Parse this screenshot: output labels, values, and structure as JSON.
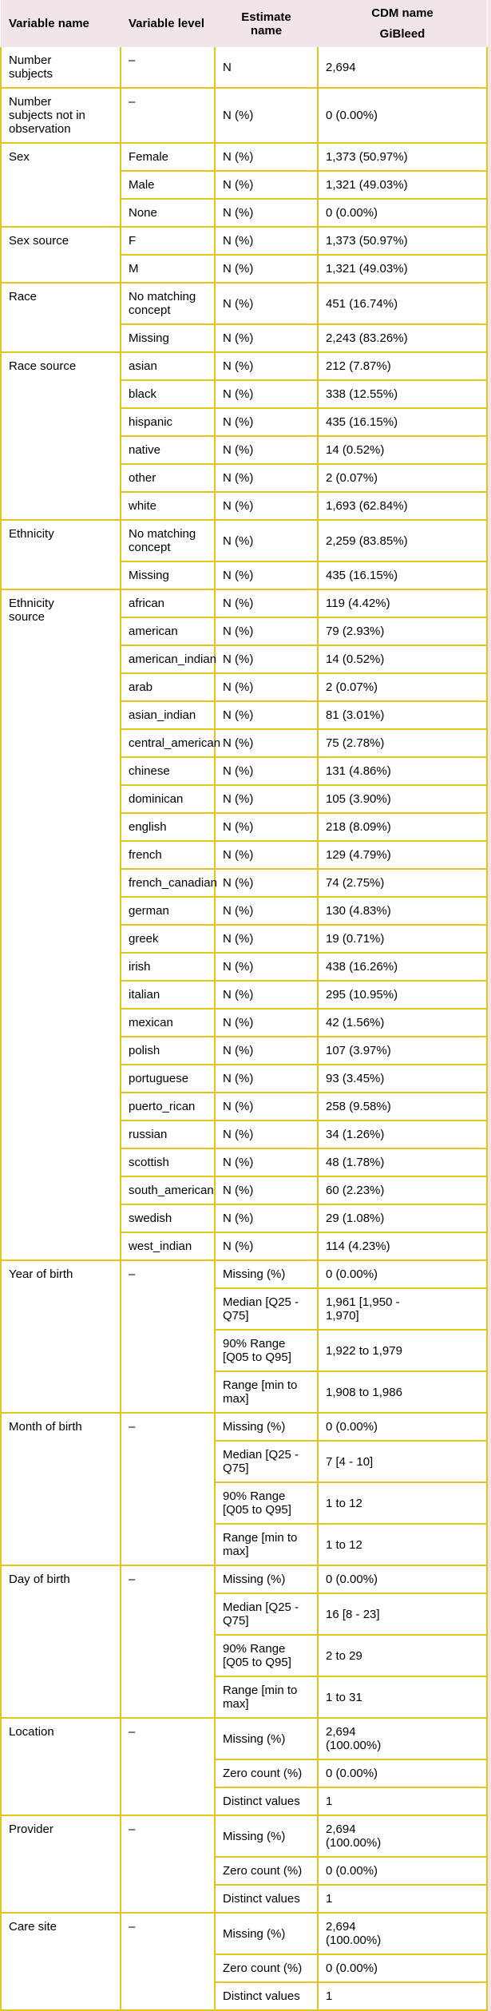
{
  "colors": {
    "border_gold": "#e3c51c",
    "header_pink": "#f2e5ea",
    "row_bg": "#ffffff",
    "text": "#000000"
  },
  "table": {
    "header": {
      "variable_name": "Variable name",
      "variable_level": "Variable level",
      "estimate_name": "Estimate\nname",
      "cdm_spanner": "CDM name",
      "cdm_label": "GiBleed"
    },
    "groups": [
      {
        "variable": "Number subjects",
        "level": "–",
        "rows": [
          {
            "estimate": "N",
            "value": "2,694"
          }
        ]
      },
      {
        "variable": "Number subjects not in observation",
        "level": "–",
        "rows": [
          {
            "estimate": "N (%)",
            "value": "0 (0.00%)"
          }
        ]
      },
      {
        "variable": "Sex",
        "rows": [
          {
            "level": "Female",
            "estimate": "N (%)",
            "value": "1,373 (50.97%)"
          },
          {
            "level": "Male",
            "estimate": "N (%)",
            "value": "1,321 (49.03%)"
          },
          {
            "level": "None",
            "estimate": "N (%)",
            "value": "0 (0.00%)"
          }
        ]
      },
      {
        "variable": "Sex source",
        "rows": [
          {
            "level": "F",
            "estimate": "N (%)",
            "value": "1,373 (50.97%)"
          },
          {
            "level": "M",
            "estimate": "N (%)",
            "value": "1,321 (49.03%)"
          }
        ]
      },
      {
        "variable": "Race",
        "rows": [
          {
            "level": "No matching concept",
            "estimate": "N (%)",
            "value": "451 (16.74%)"
          },
          {
            "level": "Missing",
            "estimate": "N (%)",
            "value": "2,243 (83.26%)"
          }
        ]
      },
      {
        "variable": "Race source",
        "rows": [
          {
            "level": "asian",
            "estimate": "N (%)",
            "value": "212 (7.87%)"
          },
          {
            "level": "black",
            "estimate": "N (%)",
            "value": "338 (12.55%)"
          },
          {
            "level": "hispanic",
            "estimate": "N (%)",
            "value": "435 (16.15%)"
          },
          {
            "level": "native",
            "estimate": "N (%)",
            "value": "14 (0.52%)"
          },
          {
            "level": "other",
            "estimate": "N (%)",
            "value": "2 (0.07%)"
          },
          {
            "level": "white",
            "estimate": "N (%)",
            "value": "1,693 (62.84%)"
          }
        ]
      },
      {
        "variable": "Ethnicity",
        "rows": [
          {
            "level": "No matching concept",
            "estimate": "N (%)",
            "value": "2,259 (83.85%)"
          },
          {
            "level": "Missing",
            "estimate": "N (%)",
            "value": "435 (16.15%)"
          }
        ]
      },
      {
        "variable": "Ethnicity source",
        "rows": [
          {
            "level": "african",
            "estimate": "N (%)",
            "value": "119 (4.42%)"
          },
          {
            "level": "american",
            "estimate": "N (%)",
            "value": "79 (2.93%)"
          },
          {
            "level": "american_indian",
            "estimate": "N (%)",
            "value": "14 (0.52%)"
          },
          {
            "level": "arab",
            "estimate": "N (%)",
            "value": "2 (0.07%)"
          },
          {
            "level": "asian_indian",
            "estimate": "N (%)",
            "value": "81 (3.01%)"
          },
          {
            "level": "central_american",
            "estimate": "N (%)",
            "value": "75 (2.78%)"
          },
          {
            "level": "chinese",
            "estimate": "N (%)",
            "value": "131 (4.86%)"
          },
          {
            "level": "dominican",
            "estimate": "N (%)",
            "value": "105 (3.90%)"
          },
          {
            "level": "english",
            "estimate": "N (%)",
            "value": "218 (8.09%)"
          },
          {
            "level": "french",
            "estimate": "N (%)",
            "value": "129 (4.79%)"
          },
          {
            "level": "french_canadian",
            "estimate": "N (%)",
            "value": "74 (2.75%)"
          },
          {
            "level": "german",
            "estimate": "N (%)",
            "value": "130 (4.83%)"
          },
          {
            "level": "greek",
            "estimate": "N (%)",
            "value": "19 (0.71%)"
          },
          {
            "level": "irish",
            "estimate": "N (%)",
            "value": "438 (16.26%)"
          },
          {
            "level": "italian",
            "estimate": "N (%)",
            "value": "295 (10.95%)"
          },
          {
            "level": "mexican",
            "estimate": "N (%)",
            "value": "42 (1.56%)"
          },
          {
            "level": "polish",
            "estimate": "N (%)",
            "value": "107 (3.97%)"
          },
          {
            "level": "portuguese",
            "estimate": "N (%)",
            "value": "93 (3.45%)"
          },
          {
            "level": "puerto_rican",
            "estimate": "N (%)",
            "value": "258 (9.58%)"
          },
          {
            "level": "russian",
            "estimate": "N (%)",
            "value": "34 (1.26%)"
          },
          {
            "level": "scottish",
            "estimate": "N (%)",
            "value": "48 (1.78%)"
          },
          {
            "level": "south_american",
            "estimate": "N (%)",
            "value": "60 (2.23%)"
          },
          {
            "level": "swedish",
            "estimate": "N (%)",
            "value": "29 (1.08%)"
          },
          {
            "level": "west_indian",
            "estimate": "N (%)",
            "value": "114 (4.23%)"
          }
        ]
      },
      {
        "variable": "Year of birth",
        "level": "–",
        "rows": [
          {
            "estimate": "Missing (%)",
            "value": "0 (0.00%)"
          },
          {
            "estimate": "Median [Q25 - Q75]",
            "value": "1,961 [1,950 - 1,970]"
          },
          {
            "estimate": "90% Range [Q05 to Q95]",
            "value": "1,922 to 1,979"
          },
          {
            "estimate": "Range [min to max]",
            "value": "1,908 to 1,986"
          }
        ]
      },
      {
        "variable": "Month of birth",
        "level": "–",
        "rows": [
          {
            "estimate": "Missing (%)",
            "value": "0 (0.00%)"
          },
          {
            "estimate": "Median [Q25 - Q75]",
            "value": "7 [4 - 10]"
          },
          {
            "estimate": "90% Range [Q05 to Q95]",
            "value": "1 to 12"
          },
          {
            "estimate": "Range [min to max]",
            "value": "1 to 12"
          }
        ]
      },
      {
        "variable": "Day of birth",
        "level": "–",
        "rows": [
          {
            "estimate": "Missing (%)",
            "value": "0 (0.00%)"
          },
          {
            "estimate": "Median [Q25 - Q75]",
            "value": "16 [8 - 23]"
          },
          {
            "estimate": "90% Range [Q05 to Q95]",
            "value": "2 to 29"
          },
          {
            "estimate": "Range [min to max]",
            "value": "1 to 31"
          }
        ]
      },
      {
        "variable": "Location",
        "level": "–",
        "rows": [
          {
            "estimate": "Missing (%)",
            "value": "2,694 (100.00%)"
          },
          {
            "estimate": "Zero count (%)",
            "value": "0 (0.00%)"
          },
          {
            "estimate": "Distinct values",
            "value": "1"
          }
        ]
      },
      {
        "variable": "Provider",
        "level": "–",
        "rows": [
          {
            "estimate": "Missing (%)",
            "value": "2,694 (100.00%)"
          },
          {
            "estimate": "Zero count (%)",
            "value": "0 (0.00%)"
          },
          {
            "estimate": "Distinct values",
            "value": "1"
          }
        ]
      },
      {
        "variable": "Care site",
        "level": "–",
        "rows": [
          {
            "estimate": "Missing (%)",
            "value": "2,694 (100.00%)"
          },
          {
            "estimate": "Zero count (%)",
            "value": "0 (0.00%)"
          },
          {
            "estimate": "Distinct values",
            "value": "1"
          }
        ]
      }
    ]
  }
}
